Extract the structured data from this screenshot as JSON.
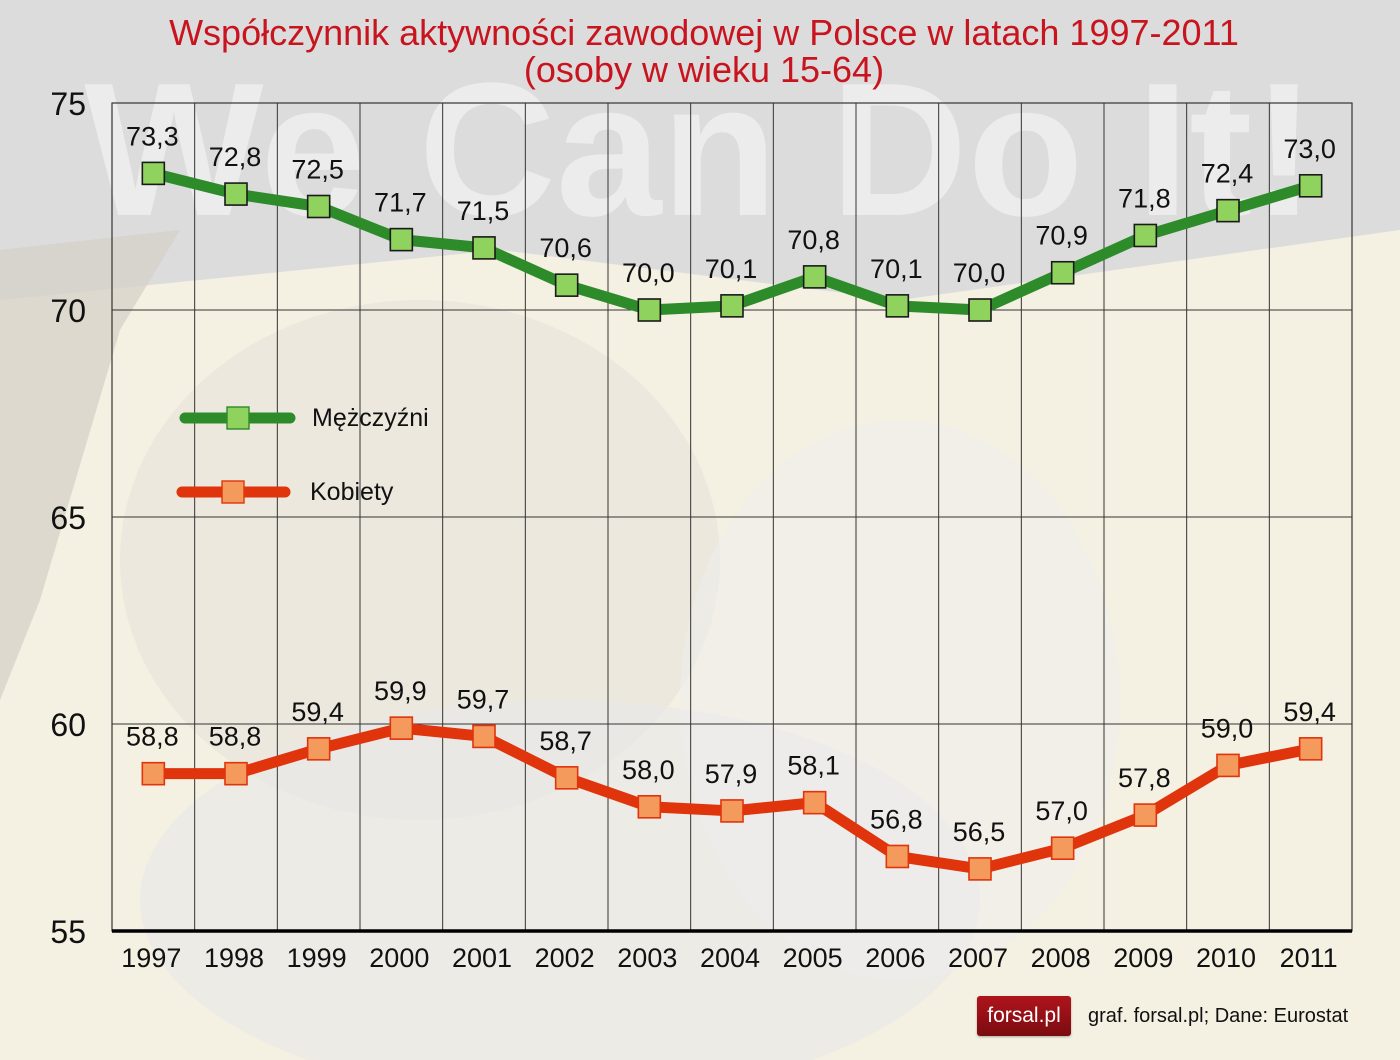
{
  "title": {
    "line1": "Współczynnik aktywności zawodowej w Polsce w latach 1997-2011",
    "line2": "(osoby w wieku 15-64)"
  },
  "background_watermark": "We Can Do It!",
  "footer": {
    "logo_text": "forsal.pl",
    "credit": "graf. forsal.pl;  Dane: Eurostat"
  },
  "colors": {
    "title": "#c8141e",
    "men_line": "#2e8b2a",
    "men_marker": "#8fd25e",
    "women_line": "#e0340c",
    "women_marker": "#f49a5c"
  },
  "chart_data": {
    "type": "line",
    "title": "Współczynnik aktywności zawodowej w Polsce w latach 1997-2011 (osoby w wieku 15-64)",
    "xlabel": "",
    "ylabel": "",
    "categories": [
      "1997",
      "1998",
      "1999",
      "2000",
      "2001",
      "2002",
      "2003",
      "2004",
      "2005",
      "2006",
      "2007",
      "2008",
      "2009",
      "2010",
      "2011"
    ],
    "series": [
      {
        "name": "Mężczyźni",
        "values": [
          73.3,
          72.8,
          72.5,
          71.7,
          71.5,
          70.6,
          70.0,
          70.1,
          70.8,
          70.1,
          70.0,
          70.9,
          71.8,
          72.4,
          73.0
        ],
        "labels": [
          "73,3",
          "72,8",
          "72,5",
          "71,7",
          "71,5",
          "70,6",
          "70,0",
          "70,1",
          "70,8",
          "70,1",
          "70,0",
          "70,9",
          "71,8",
          "72,4",
          "73,0"
        ]
      },
      {
        "name": "Kobiety",
        "values": [
          58.8,
          58.8,
          59.4,
          59.9,
          59.7,
          58.7,
          58.0,
          57.9,
          58.1,
          56.8,
          56.5,
          57.0,
          57.8,
          59.0,
          59.4
        ],
        "labels": [
          "58,8",
          "58,8",
          "59,4",
          "59,9",
          "59,7",
          "58,7",
          "58,0",
          "57,9",
          "58,1",
          "56,8",
          "56,5",
          "57,0",
          "57,8",
          "59,0",
          "59,4"
        ]
      }
    ],
    "ylim": [
      55,
      75
    ],
    "yticks": [
      55,
      60,
      65,
      70,
      75
    ],
    "grid": true,
    "legend_position": "inside-left-middle",
    "data_labels": true
  }
}
